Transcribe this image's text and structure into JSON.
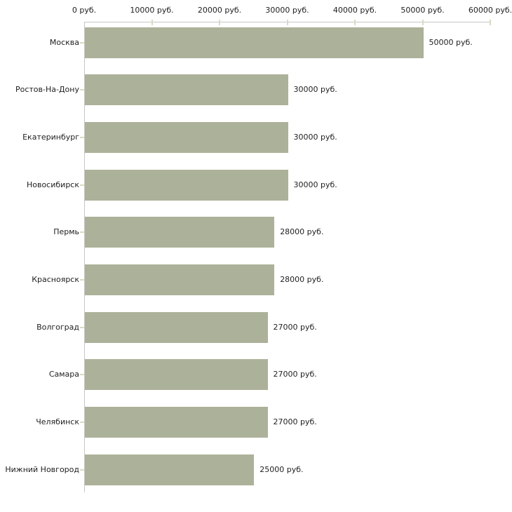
{
  "chart_data": {
    "type": "bar",
    "orientation": "horizontal",
    "title": "",
    "xlabel": "",
    "ylabel": "",
    "unit": "руб.",
    "categories": [
      "Москва",
      "Ростов-На-Дону",
      "Екатеринбург",
      "Новосибирск",
      "Пермь",
      "Красноярск",
      "Волгоград",
      "Самара",
      "Челябинск",
      "Нижний Новгород"
    ],
    "values": [
      50000,
      30000,
      30000,
      30000,
      28000,
      28000,
      27000,
      27000,
      27000,
      25000
    ],
    "value_labels": [
      "50000 руб.",
      "30000 руб.",
      "30000 руб.",
      "30000 руб.",
      "28000 руб.",
      "28000 руб.",
      "27000 руб.",
      "27000 руб.",
      "27000 руб.",
      "25000 руб."
    ],
    "x_tick_values": [
      0,
      10000,
      20000,
      30000,
      40000,
      50000,
      60000
    ],
    "x_tick_labels": [
      "0 руб.",
      "10000 руб.",
      "20000 руб.",
      "30000 руб.",
      "40000 руб.",
      "50000 руб.",
      "60000 руб."
    ],
    "xlim": [
      0,
      60000
    ],
    "grid": false,
    "legend_position": "none",
    "colors": {
      "bar": "#acb299",
      "axis_line": "#c6c6c6",
      "tick_mark": "#d9dbc0",
      "text": "#1e1e1e",
      "background": "#ffffff"
    }
  }
}
